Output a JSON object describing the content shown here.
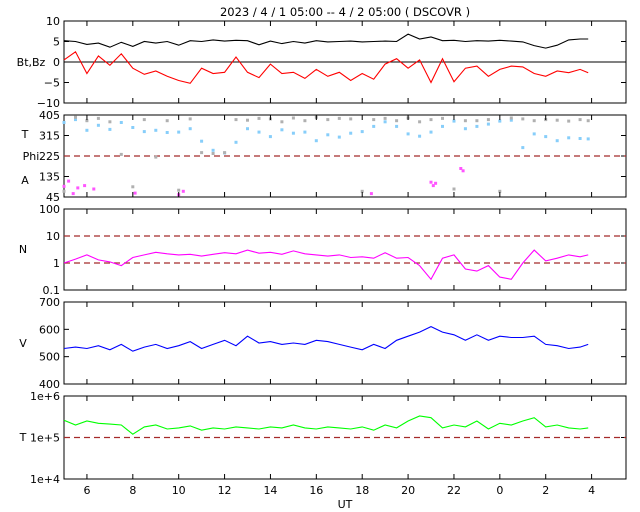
{
  "header": {
    "title": "2023 /  4 /  1   05:00 --  4 /  2   05:00 ( DSCOVR )"
  },
  "colors": {
    "bt": "#000000",
    "bz": "#ff0000",
    "theta": "#87cefa",
    "phi": "#b0b0b0",
    "alpha": "#ff55ff",
    "density": "#ff00ff",
    "speed": "#0000ff",
    "temperature": "#00ff00",
    "reference_line": "#a52a2a"
  },
  "chart_data": [
    {
      "type": "line",
      "panel": "Bt, Bz",
      "ylabel": "Bt,Bz",
      "ylim": [
        -10,
        10
      ],
      "yticks": [
        "10",
        "5",
        "0",
        "−5",
        "−10"
      ],
      "zero_line": 0,
      "series": [
        {
          "name": "Bt",
          "x": [
            5.0,
            5.5,
            6.0,
            6.5,
            7.0,
            7.5,
            8.0,
            8.5,
            9.0,
            9.5,
            10.0,
            10.5,
            11.0,
            11.5,
            12.0,
            12.5,
            13.0,
            13.5,
            14.0,
            14.5,
            15.0,
            15.5,
            16.0,
            16.5,
            17.0,
            17.5,
            18.0,
            18.5,
            19.0,
            19.5,
            20.0,
            20.5,
            21.0,
            21.5,
            22.0,
            22.5,
            23.0,
            23.5,
            24.0,
            24.5,
            25.0,
            25.5,
            26.0,
            26.5,
            27.0,
            27.5,
            27.85
          ],
          "values": [
            5.2,
            5.0,
            4.3,
            4.6,
            3.6,
            4.8,
            3.8,
            5.0,
            4.6,
            5.0,
            4.1,
            5.2,
            5.0,
            5.4,
            5.1,
            5.3,
            5.2,
            4.2,
            5.1,
            4.5,
            5.0,
            4.6,
            5.2,
            4.9,
            5.0,
            5.1,
            4.9,
            5.0,
            5.1,
            5.0,
            6.8,
            5.6,
            6.1,
            5.2,
            5.3,
            5.0,
            5.2,
            5.1,
            5.3,
            5.1,
            4.9,
            4.0,
            3.4,
            4.1,
            5.4,
            5.6,
            5.6
          ]
        },
        {
          "name": "Bz",
          "x": [
            5.0,
            5.5,
            6.0,
            6.5,
            7.0,
            7.5,
            8.0,
            8.5,
            9.0,
            9.5,
            10.0,
            10.5,
            11.0,
            11.5,
            12.0,
            12.5,
            13.0,
            13.5,
            14.0,
            14.5,
            15.0,
            15.5,
            16.0,
            16.5,
            17.0,
            17.5,
            18.0,
            18.5,
            19.0,
            19.5,
            20.0,
            20.5,
            21.0,
            21.5,
            22.0,
            22.5,
            23.0,
            23.5,
            24.0,
            24.5,
            25.0,
            25.5,
            26.0,
            26.5,
            27.0,
            27.5,
            27.85
          ],
          "values": [
            0.5,
            2.5,
            -2.8,
            1.5,
            -0.8,
            2.0,
            -1.5,
            -3.0,
            -2.2,
            -3.5,
            -4.5,
            -5.2,
            -1.5,
            -2.8,
            -2.5,
            1.2,
            -2.5,
            -3.8,
            -0.5,
            -2.8,
            -2.5,
            -4.0,
            -1.8,
            -3.5,
            -2.5,
            -4.5,
            -2.8,
            -4.2,
            -0.5,
            0.8,
            -1.5,
            0.5,
            -5.0,
            0.8,
            -4.8,
            -1.5,
            -1.0,
            -3.5,
            -1.8,
            -1.0,
            -1.2,
            -2.8,
            -3.5,
            -2.2,
            -2.6,
            -1.8,
            -2.6
          ]
        }
      ]
    },
    {
      "type": "scatter",
      "panel": "T / Phi / A",
      "ylabel_lines": [
        "T",
        "Phi",
        "A"
      ],
      "ylim": [
        45,
        405
      ],
      "yticks": [
        "405",
        "315",
        "225",
        "135",
        "45"
      ],
      "reference_line": 225,
      "series": [
        {
          "name": "T",
          "x": [
            5.0,
            5.5,
            6.0,
            6.5,
            7.0,
            7.5,
            8.0,
            8.5,
            9.0,
            9.5,
            10.0,
            10.5,
            11.0,
            11.5,
            12.0,
            12.5,
            13.0,
            13.5,
            14.0,
            14.5,
            15.0,
            15.5,
            16.0,
            16.5,
            17.0,
            17.5,
            18.0,
            18.5,
            19.0,
            19.5,
            20.0,
            20.5,
            21.0,
            21.5,
            22.0,
            22.5,
            23.0,
            23.5,
            24.0,
            24.5,
            25.0,
            25.5,
            26.0,
            26.5,
            27.0,
            27.5,
            27.85
          ],
          "values": [
            372,
            385,
            338,
            360,
            342,
            372,
            350,
            332,
            338,
            328,
            330,
            345,
            290,
            250,
            238,
            285,
            345,
            330,
            310,
            340,
            325,
            330,
            292,
            318,
            308,
            325,
            332,
            355,
            375,
            355,
            322,
            312,
            330,
            355,
            378,
            345,
            355,
            365,
            378,
            382,
            262,
            322,
            310,
            292,
            305,
            302,
            300
          ]
        },
        {
          "name": "Phi",
          "x": [
            5.0,
            5.5,
            6.0,
            6.5,
            7.0,
            7.5,
            8.0,
            8.5,
            9.0,
            9.5,
            10.0,
            10.5,
            11.0,
            11.5,
            12.0,
            12.5,
            13.0,
            13.5,
            14.0,
            14.5,
            15.0,
            15.5,
            16.0,
            16.5,
            17.0,
            17.5,
            18.0,
            18.5,
            19.0,
            19.5,
            20.0,
            20.5,
            21.0,
            21.5,
            22.0,
            22.5,
            23.0,
            23.5,
            24.0,
            24.5,
            25.0,
            25.5,
            26.0,
            26.5,
            27.0,
            27.5,
            27.85
          ],
          "values": [
            70,
            395,
            380,
            390,
            375,
            232,
            90,
            385,
            220,
            380,
            75,
            388,
            240,
            236,
            240,
            385,
            382,
            390,
            388,
            375,
            392,
            380,
            395,
            385,
            390,
            388,
            70,
            385,
            390,
            380,
            392,
            375,
            385,
            390,
            80,
            380,
            380,
            385,
            70,
            392,
            388,
            380,
            385,
            382,
            378,
            385,
            380
          ]
        },
        {
          "name": "A",
          "x": [
            5.0,
            5.2,
            5.4,
            5.6,
            5.9,
            6.3,
            8.1,
            10.0,
            10.2,
            18.4,
            21.0,
            21.1,
            21.2,
            22.3,
            22.4
          ],
          "values": [
            92,
            115,
            60,
            85,
            95,
            80,
            62,
            55,
            70,
            60,
            110,
            95,
            105,
            170,
            160
          ]
        }
      ]
    },
    {
      "type": "line",
      "panel": "N",
      "ylabel": "N",
      "yscale": "log",
      "ylim": [
        0.1,
        100
      ],
      "yticks": [
        "100",
        "10",
        "1",
        "0.1"
      ],
      "reference_lines": [
        10,
        1
      ],
      "series": [
        {
          "name": "N",
          "x": [
            5.0,
            5.5,
            6.0,
            6.5,
            7.0,
            7.5,
            8.0,
            8.5,
            9.0,
            9.5,
            10.0,
            10.5,
            11.0,
            11.5,
            12.0,
            12.5,
            13.0,
            13.5,
            14.0,
            14.5,
            15.0,
            15.5,
            16.0,
            16.5,
            17.0,
            17.5,
            18.0,
            18.5,
            19.0,
            19.5,
            20.0,
            20.5,
            21.0,
            21.5,
            22.0,
            22.5,
            23.0,
            23.5,
            24.0,
            24.5,
            25.0,
            25.5,
            26.0,
            26.5,
            27.0,
            27.5,
            27.85
          ],
          "values": [
            1.0,
            1.4,
            2.0,
            1.3,
            1.1,
            0.8,
            1.6,
            2.0,
            2.5,
            2.2,
            2.0,
            2.1,
            1.8,
            2.1,
            2.4,
            2.2,
            3.0,
            2.3,
            2.5,
            2.1,
            2.8,
            2.2,
            2.0,
            1.8,
            2.0,
            1.6,
            1.7,
            1.5,
            2.4,
            1.5,
            1.6,
            0.8,
            0.25,
            1.5,
            2.0,
            0.6,
            0.5,
            0.8,
            0.3,
            0.25,
            1.0,
            3.0,
            1.2,
            1.5,
            2.0,
            1.7,
            2.0
          ]
        }
      ]
    },
    {
      "type": "line",
      "panel": "V",
      "ylabel": "V",
      "ylim": [
        400,
        700
      ],
      "yticks": [
        "700",
        "600",
        "500",
        "400"
      ],
      "series": [
        {
          "name": "V",
          "x": [
            5.0,
            5.5,
            6.0,
            6.5,
            7.0,
            7.5,
            8.0,
            8.5,
            9.0,
            9.5,
            10.0,
            10.5,
            11.0,
            11.5,
            12.0,
            12.5,
            13.0,
            13.5,
            14.0,
            14.5,
            15.0,
            15.5,
            16.0,
            16.5,
            17.0,
            17.5,
            18.0,
            18.5,
            19.0,
            19.5,
            20.0,
            20.5,
            21.0,
            21.5,
            22.0,
            22.5,
            23.0,
            23.5,
            24.0,
            24.5,
            25.0,
            25.5,
            26.0,
            26.5,
            27.0,
            27.5,
            27.85
          ],
          "values": [
            530,
            535,
            530,
            540,
            525,
            545,
            520,
            535,
            545,
            530,
            540,
            555,
            530,
            545,
            560,
            540,
            575,
            550,
            555,
            545,
            550,
            545,
            560,
            555,
            545,
            535,
            525,
            545,
            530,
            560,
            575,
            590,
            610,
            590,
            580,
            560,
            580,
            560,
            575,
            570,
            570,
            575,
            545,
            540,
            530,
            535,
            545
          ]
        }
      ]
    },
    {
      "type": "line",
      "panel": "T",
      "ylabel": "T",
      "yscale": "log",
      "ylim": [
        10000,
        1000000
      ],
      "yticks": [
        "1e+6",
        "1e+5",
        "1e+4"
      ],
      "reference_line": 100000,
      "series": [
        {
          "name": "T",
          "x": [
            5.0,
            5.5,
            6.0,
            6.5,
            7.0,
            7.5,
            8.0,
            8.5,
            9.0,
            9.5,
            10.0,
            10.5,
            11.0,
            11.5,
            12.0,
            12.5,
            13.0,
            13.5,
            14.0,
            14.5,
            15.0,
            15.5,
            16.0,
            16.5,
            17.0,
            17.5,
            18.0,
            18.5,
            19.0,
            19.5,
            20.0,
            20.5,
            21.0,
            21.5,
            22.0,
            22.5,
            23.0,
            23.5,
            24.0,
            24.5,
            25.0,
            25.5,
            26.0,
            26.5,
            27.0,
            27.5,
            27.85
          ],
          "values": [
            260000,
            200000,
            250000,
            220000,
            210000,
            200000,
            120000,
            180000,
            200000,
            160000,
            170000,
            190000,
            150000,
            170000,
            160000,
            180000,
            170000,
            160000,
            180000,
            170000,
            200000,
            170000,
            160000,
            180000,
            170000,
            160000,
            180000,
            150000,
            200000,
            170000,
            250000,
            330000,
            300000,
            170000,
            200000,
            180000,
            250000,
            160000,
            220000,
            200000,
            250000,
            300000,
            180000,
            200000,
            170000,
            160000,
            170000
          ]
        }
      ]
    }
  ],
  "xaxis": {
    "xlim": [
      5.0,
      29.5
    ],
    "ticks": [
      "6",
      "8",
      "10",
      "12",
      "14",
      "16",
      "18",
      "20",
      "22",
      "0",
      "2",
      "4"
    ],
    "label": "UT"
  }
}
